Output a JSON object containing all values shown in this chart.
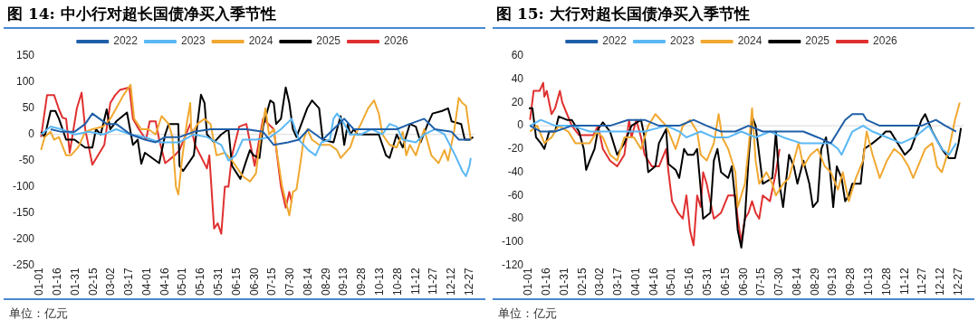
{
  "chart_data": [
    {
      "type": "line",
      "title": "图 14:  中小行对超长国债净买入季节性",
      "annotations": [
        "单位：亿元"
      ],
      "legend": "top",
      "grid": false,
      "marker": "none",
      "line_style": "solid",
      "xlim": [
        "--01-01",
        "--12-31"
      ],
      "xticks": [
        {
          "value": "--01-01",
          "label": "01-01"
        },
        {
          "value": "--01-16",
          "label": "01-16"
        },
        {
          "value": "--01-31",
          "label": "01-31"
        },
        {
          "value": "--02-15",
          "label": "02-15"
        },
        {
          "value": "--03-02",
          "label": "03-02"
        },
        {
          "value": "--03-17",
          "label": "03-17"
        },
        {
          "value": "--04-01",
          "label": "04-01"
        },
        {
          "value": "--04-16",
          "label": "04-16"
        },
        {
          "value": "--05-01",
          "label": "05-01"
        },
        {
          "value": "--05-16",
          "label": "05-16"
        },
        {
          "value": "--05-31",
          "label": "05-31"
        },
        {
          "value": "--06-15",
          "label": "06-15"
        },
        {
          "value": "--06-30",
          "label": "06-30"
        },
        {
          "value": "--07-15",
          "label": "07-15"
        },
        {
          "value": "--07-30",
          "label": "07-30"
        },
        {
          "value": "--08-14",
          "label": "08-14"
        },
        {
          "value": "--08-29",
          "label": "08-29"
        },
        {
          "value": "--09-13",
          "label": "09-13"
        },
        {
          "value": "--09-28",
          "label": "09-28"
        },
        {
          "value": "--10-13",
          "label": "10-13"
        },
        {
          "value": "--10-28",
          "label": "10-28"
        },
        {
          "value": "--11-12",
          "label": "11-12"
        },
        {
          "value": "--11-27",
          "label": "11-27"
        },
        {
          "value": "--12-12",
          "label": "12-12"
        },
        {
          "value": "--12-27",
          "label": "12-27"
        }
      ],
      "ylim": [
        -250,
        150
      ],
      "yticks": [
        -250,
        -200,
        -150,
        -100,
        -50,
        0,
        50,
        100,
        150
      ],
      "ref_lines": [
        {
          "axis": "y",
          "value": 0,
          "color": "#d9d9d9"
        }
      ],
      "series": [
        {
          "name": "2022",
          "color": "#1f5fa8",
          "x": [
            "--01-10",
            "--01-19",
            "--01-30",
            "--02-08",
            "--02-14",
            "--02-20",
            "--02-26",
            "--03-06",
            "--03-18",
            "--03-30",
            "--04-08",
            "--04-16",
            "--04-28",
            "--05-10",
            "--05-24",
            "--06-08",
            "--06-23",
            "--07-07",
            "--07-16",
            "--07-28",
            "--08-06",
            "--08-14",
            "--08-26",
            "--09-04",
            "--09-13",
            "--09-21",
            "--10-03",
            "--10-15",
            "--10-27",
            "--11-07",
            "--11-19",
            "--11-28",
            "--12-12",
            "--12-18",
            "--12-28"
          ],
          "values": [
            10,
            5,
            5,
            20,
            40,
            30,
            20,
            20,
            0,
            -10,
            -15,
            -5,
            -5,
            5,
            10,
            10,
            10,
            5,
            -20,
            -15,
            -10,
            10,
            -10,
            10,
            30,
            10,
            10,
            10,
            10,
            20,
            30,
            10,
            5,
            -10,
            -10
          ]
        },
        {
          "name": "2023",
          "color": "#5bb8f5",
          "x": [
            "--01-02",
            "--01-10",
            "--01-19",
            "--01-30",
            "--02-11",
            "--02-23",
            "--03-06",
            "--03-18",
            "--03-30",
            "--04-11",
            "--04-28",
            "--05-10",
            "--05-21",
            "--06-02",
            "--06-08",
            "--06-14",
            "--06-20",
            "--07-01",
            "--07-13",
            "--07-22",
            "--07-31",
            "--08-06",
            "--08-14",
            "--08-20",
            "--08-25",
            "--09-01",
            "--09-04",
            "--09-07",
            "--09-13",
            "--09-18",
            "--09-27",
            "--10-06",
            "--10-15",
            "--10-21",
            "--10-27",
            "--11-01",
            "--11-12",
            "--11-19",
            "--11-28",
            "--12-06",
            "--12-15",
            "--12-21",
            "--12-24",
            "--12-27",
            "--12-28"
          ],
          "values": [
            0,
            15,
            10,
            0,
            5,
            0,
            10,
            0,
            -5,
            -15,
            -15,
            0,
            -5,
            -20,
            -50,
            -40,
            -10,
            -10,
            -5,
            10,
            30,
            -10,
            -30,
            -40,
            -15,
            -10,
            30,
            40,
            20,
            0,
            0,
            10,
            0,
            20,
            15,
            -10,
            -15,
            0,
            10,
            0,
            -40,
            -70,
            -80,
            -60,
            -45
          ]
        },
        {
          "name": "2024",
          "color": "#f0a830",
          "x": [
            "--01-02",
            "--01-05",
            "--01-10",
            "--01-13",
            "--01-17",
            "--01-23",
            "--01-27",
            "--02-02",
            "--02-08",
            "--02-14",
            "--02-23",
            "--03-01",
            "--03-06",
            "--03-12",
            "--03-18",
            "--03-21",
            "--03-27",
            "--04-02",
            "--04-08",
            "--04-13",
            "--04-19",
            "--04-22",
            "--04-25",
            "--04-27",
            "--04-30",
            "--05-04",
            "--05-07",
            "--05-08",
            "--05-13",
            "--05-19",
            "--05-24",
            "--05-29",
            "--06-05",
            "--06-11",
            "--06-14",
            "--06-20",
            "--06-26",
            "--07-01",
            "--07-04",
            "--07-09",
            "--07-12",
            "--07-16",
            "--07-19",
            "--07-23",
            "--07-29",
            "--08-01",
            "--08-04",
            "--08-07",
            "--08-10",
            "--08-13",
            "--08-17",
            "--08-23",
            "--09-01",
            "--09-07",
            "--09-10",
            "--09-18",
            "--09-21",
            "--09-27",
            "--10-03",
            "--10-08",
            "--10-12",
            "--10-15",
            "--10-21",
            "--10-27",
            "--11-01",
            "--11-04",
            "--11-07",
            "--11-12",
            "--11-19",
            "--11-25",
            "--12-01",
            "--12-06",
            "--12-09",
            "--12-14",
            "--12-18",
            "--12-21",
            "--12-24",
            "--12-28"
          ],
          "values": [
            -30,
            -5,
            5,
            -10,
            -5,
            -40,
            -40,
            -25,
            5,
            10,
            15,
            30,
            50,
            75,
            95,
            30,
            10,
            10,
            0,
            35,
            20,
            -5,
            -100,
            -115,
            -50,
            20,
            60,
            0,
            20,
            30,
            20,
            -40,
            -35,
            -50,
            -60,
            -80,
            -90,
            -75,
            -20,
            50,
            0,
            10,
            -40,
            -100,
            -155,
            -110,
            -105,
            -60,
            -10,
            10,
            -10,
            -20,
            -20,
            -30,
            -45,
            -25,
            -5,
            20,
            50,
            65,
            40,
            0,
            -20,
            -25,
            5,
            -40,
            -20,
            -40,
            10,
            -40,
            -55,
            -30,
            -50,
            5,
            70,
            60,
            55,
            -10
          ]
        },
        {
          "name": "2025",
          "color": "#000000",
          "x": [
            "--01-02",
            "--01-05",
            "--01-10",
            "--01-14",
            "--01-17",
            "--01-23",
            "--01-30",
            "--02-08",
            "--02-14",
            "--02-17",
            "--02-21",
            "--02-26",
            "--03-01",
            "--03-06",
            "--03-15",
            "--03-20",
            "--03-24",
            "--03-27",
            "--03-30",
            "--04-11",
            "--04-16",
            "--04-19",
            "--04-27",
            "--04-28",
            "--05-01",
            "--05-10",
            "--05-13",
            "--05-16",
            "--05-19",
            "--05-21",
            "--05-27",
            "--06-02",
            "--06-08",
            "--06-11",
            "--06-18",
            "--06-23",
            "--06-26",
            "--06-29",
            "--07-04",
            "--07-07",
            "--07-13",
            "--07-16",
            "--07-18",
            "--07-22",
            "--07-26",
            "--07-29",
            "--08-01",
            "--08-04",
            "--08-13",
            "--08-17",
            "--08-23",
            "--08-26",
            "--09-04",
            "--09-10",
            "--09-13",
            "--09-16",
            "--09-18",
            "--09-21",
            "--09-24",
            "--10-12",
            "--10-18",
            "--10-21",
            "--10-27",
            "--11-01",
            "--11-07",
            "--11-12",
            "--11-16",
            "--11-22",
            "--11-26",
            "--12-04",
            "--12-09",
            "--12-12",
            "--12-20",
            "--12-23",
            "--12-27",
            "--12-30"
          ],
          "values": [
            5,
            -5,
            45,
            45,
            30,
            -10,
            -10,
            -25,
            -25,
            10,
            0,
            48,
            10,
            25,
            42,
            -20,
            -10,
            -56,
            -35,
            -55,
            0,
            20,
            20,
            -60,
            -70,
            -40,
            20,
            76,
            60,
            0,
            -15,
            0,
            10,
            -60,
            -85,
            -50,
            -30,
            -40,
            -45,
            15,
            65,
            60,
            20,
            30,
            90,
            60,
            10,
            -5,
            50,
            65,
            50,
            -10,
            -15,
            35,
            -20,
            20,
            0,
            10,
            0,
            0,
            -40,
            -45,
            0,
            -25,
            20,
            15,
            -15,
            20,
            40,
            45,
            50,
            25,
            20,
            -10,
            -10,
            -5
          ]
        },
        {
          "name": "2026",
          "color": "#e03030",
          "x": [
            "--01-02",
            "--01-07",
            "--01-13",
            "--01-17",
            "--01-20",
            "--01-23",
            "--01-26",
            "--02-01",
            "--02-05",
            "--02-08",
            "--02-14",
            "--02-24",
            "--03-01",
            "--03-05",
            "--03-09",
            "--03-17",
            "--03-20",
            "--03-25",
            "--03-31",
            "--04-03",
            "--04-08",
            "--04-11",
            "--04-16",
            "--04-24",
            "--04-28",
            "--05-07",
            "--05-11",
            "--05-21",
            "--05-23",
            "--05-27",
            "--05-30",
            "--06-02",
            "--06-05",
            "--06-08",
            "--06-11",
            "--06-17",
            "--06-23",
            "--06-30",
            "--07-03",
            "--07-07",
            "--07-16",
            "--07-22",
            "--07-26",
            "--07-29",
            "--07-31"
          ],
          "values": [
            -5,
            75,
            75,
            48,
            32,
            30,
            -35,
            50,
            80,
            10,
            -58,
            -20,
            60,
            75,
            85,
            90,
            30,
            10,
            -10,
            25,
            25,
            -10,
            -55,
            -40,
            -30,
            20,
            -20,
            -65,
            -40,
            -180,
            -170,
            -190,
            -100,
            -100,
            -40,
            15,
            20,
            -60,
            -20,
            30,
            10,
            -100,
            -140,
            -110,
            -130
          ]
        }
      ]
    },
    {
      "type": "line",
      "title": "图 15:  大行对超长国债净买入季节性",
      "annotations": [
        "单位：亿元"
      ],
      "legend": "top",
      "grid": false,
      "marker": "none",
      "line_style": "solid",
      "xlim": [
        "--01-01",
        "--12-31"
      ],
      "xticks": [
        {
          "value": "--01-01",
          "label": "01-01"
        },
        {
          "value": "--01-16",
          "label": "01-16"
        },
        {
          "value": "--01-31",
          "label": "01-31"
        },
        {
          "value": "--02-15",
          "label": "02-15"
        },
        {
          "value": "--03-02",
          "label": "03-02"
        },
        {
          "value": "--03-17",
          "label": "03-17"
        },
        {
          "value": "--04-01",
          "label": "04-01"
        },
        {
          "value": "--04-16",
          "label": "04-16"
        },
        {
          "value": "--05-01",
          "label": "05-01"
        },
        {
          "value": "--05-16",
          "label": "05-16"
        },
        {
          "value": "--05-31",
          "label": "05-31"
        },
        {
          "value": "--06-15",
          "label": "06-15"
        },
        {
          "value": "--06-30",
          "label": "06-30"
        },
        {
          "value": "--07-15",
          "label": "07-15"
        },
        {
          "value": "--07-30",
          "label": "07-30"
        },
        {
          "value": "--08-14",
          "label": "08-14"
        },
        {
          "value": "--08-29",
          "label": "08-29"
        },
        {
          "value": "--09-13",
          "label": "09-13"
        },
        {
          "value": "--09-28",
          "label": "09-28"
        },
        {
          "value": "--10-13",
          "label": "10-13"
        },
        {
          "value": "--10-28",
          "label": "10-28"
        },
        {
          "value": "--11-12",
          "label": "11-12"
        },
        {
          "value": "--11-27",
          "label": "11-27"
        },
        {
          "value": "--12-12",
          "label": "12-12"
        },
        {
          "value": "--12-27",
          "label": "12-27"
        }
      ],
      "ylim": [
        -120,
        60
      ],
      "yticks": [
        -120,
        -100,
        -80,
        -60,
        -40,
        -20,
        0,
        20,
        40,
        60
      ],
      "ref_lines": [
        {
          "axis": "y",
          "value": 0,
          "color": "#d9d9d9"
        }
      ],
      "series": [
        {
          "name": "2022",
          "color": "#1f5fa8",
          "x": [
            "--01-02",
            "--01-11",
            "--01-23",
            "--02-06",
            "--02-21",
            "--03-10",
            "--03-25",
            "--04-08",
            "--04-20",
            "--05-07",
            "--05-19",
            "--05-30",
            "--06-11",
            "--06-23",
            "--07-04",
            "--07-16",
            "--07-27",
            "--08-08",
            "--08-19",
            "--08-31",
            "--09-11",
            "--09-17",
            "--09-23",
            "--09-29",
            "--10-08",
            "--10-11",
            "--10-22",
            "--11-03",
            "--11-15",
            "--11-26",
            "--12-08",
            "--12-16",
            "--12-25"
          ],
          "values": [
            0,
            -5,
            -5,
            0,
            0,
            0,
            5,
            5,
            0,
            0,
            5,
            0,
            -5,
            -5,
            0,
            -5,
            -5,
            -5,
            -5,
            -10,
            -15,
            -5,
            5,
            10,
            10,
            5,
            0,
            0,
            0,
            0,
            5,
            0,
            -5
          ]
        },
        {
          "name": "2023",
          "color": "#5bb8f5",
          "x": [
            "--01-02",
            "--01-11",
            "--01-23",
            "--02-06",
            "--02-21",
            "--03-10",
            "--03-25",
            "--04-08",
            "--04-26",
            "--05-07",
            "--05-13",
            "--05-25",
            "--06-05",
            "--06-17",
            "--06-28",
            "--07-10",
            "--07-22",
            "--08-02",
            "--08-17",
            "--08-31",
            "--09-11",
            "--09-17",
            "--09-20",
            "--09-29",
            "--10-08",
            "--10-16",
            "--10-28",
            "--11-09",
            "--11-20",
            "--12-02",
            "--12-13",
            "--12-19",
            "--12-25"
          ],
          "values": [
            0,
            5,
            0,
            0,
            -5,
            -5,
            -5,
            -5,
            0,
            -5,
            -10,
            -5,
            -10,
            -10,
            -5,
            -10,
            -5,
            -10,
            -15,
            -15,
            -15,
            -20,
            -25,
            -5,
            0,
            -5,
            -10,
            -15,
            -10,
            0,
            -20,
            -25,
            -15
          ]
        },
        {
          "name": "2024",
          "color": "#f0a830",
          "x": [
            "--01-02",
            "--01-08",
            "--01-14",
            "--01-20",
            "--01-26",
            "--02-03",
            "--02-09",
            "--02-21",
            "--02-27",
            "--03-04",
            "--03-10",
            "--03-16",
            "--03-22",
            "--03-30",
            "--04-05",
            "--04-11",
            "--04-17",
            "--04-26",
            "--05-04",
            "--05-10",
            "--05-16",
            "--05-22",
            "--05-25",
            "--05-30",
            "--06-05",
            "--06-09",
            "--06-12",
            "--06-17",
            "--06-23",
            "--06-25",
            "--07-01",
            "--07-04",
            "--07-07",
            "--07-10",
            "--07-13",
            "--07-19",
            "--07-24",
            "--07-27",
            "--08-02",
            "--08-07",
            "--08-11",
            "--08-15",
            "--08-19",
            "--08-25",
            "--08-31",
            "--09-06",
            "--09-11",
            "--09-17",
            "--09-21",
            "--09-26",
            "--10-02",
            "--10-08",
            "--10-11",
            "--10-16",
            "--10-22",
            "--10-28",
            "--11-03",
            "--11-09",
            "--11-15",
            "--11-19",
            "--11-23",
            "--11-29",
            "--12-05",
            "--12-09",
            "--12-13",
            "--12-16",
            "--12-19",
            "--12-24",
            "--12-28"
          ],
          "values": [
            -5,
            0,
            -15,
            -10,
            0,
            -5,
            -15,
            -15,
            -5,
            -10,
            -25,
            -30,
            -10,
            -10,
            -20,
            0,
            10,
            0,
            -20,
            0,
            5,
            -5,
            -25,
            -30,
            -15,
            10,
            -10,
            -20,
            -40,
            -70,
            -50,
            -20,
            15,
            -30,
            -50,
            -40,
            -50,
            -60,
            -50,
            -45,
            -30,
            -15,
            -35,
            -25,
            -20,
            -35,
            -40,
            -55,
            -40,
            -65,
            -45,
            -30,
            -5,
            -25,
            -45,
            -30,
            -20,
            -25,
            -35,
            -45,
            -35,
            -20,
            -15,
            -35,
            -40,
            -30,
            -20,
            5,
            20
          ]
        },
        {
          "name": "2025",
          "color": "#000000",
          "x": [
            "--01-01",
            "--01-04",
            "--01-07",
            "--01-11",
            "--01-14",
            "--01-18",
            "--01-23",
            "--01-26",
            "--02-02",
            "--02-06",
            "--02-12",
            "--02-16",
            "--02-18",
            "--02-21",
            "--02-25",
            "--02-28",
            "--03-04",
            "--03-10",
            "--03-16",
            "--03-22",
            "--03-28",
            "--04-05",
            "--04-08",
            "--04-11",
            "--04-17",
            "--04-20",
            "--04-26",
            "--04-28",
            "--05-04",
            "--05-07",
            "--05-11",
            "--05-14",
            "--05-19",
            "--05-22",
            "--05-25",
            "--05-27",
            "--06-02",
            "--06-05",
            "--06-08",
            "--06-11",
            "--06-17",
            "--06-20",
            "--06-23",
            "--06-25",
            "--06-28",
            "--07-01",
            "--07-04",
            "--07-07",
            "--07-10",
            "--07-13",
            "--07-16",
            "--07-24",
            "--07-27",
            "--07-30",
            "--08-02",
            "--08-07",
            "--08-11",
            "--08-14",
            "--08-19",
            "--08-24",
            "--08-27",
            "--08-31",
            "--09-03",
            "--09-07",
            "--09-10",
            "--09-13",
            "--09-16",
            "--09-20",
            "--09-23",
            "--09-26",
            "--09-29",
            "--10-06",
            "--10-09",
            "--10-16",
            "--10-22",
            "--10-27",
            "--10-31",
            "--11-06",
            "--11-12",
            "--11-17",
            "--11-26",
            "--11-29",
            "--12-05",
            "--12-13",
            "--12-19",
            "--12-24",
            "--12-27",
            "--12-29"
          ],
          "values": [
            15,
            15,
            -10,
            -15,
            -20,
            -5,
            -5,
            8,
            5,
            5,
            -5,
            -20,
            -38,
            -30,
            -20,
            -3,
            3,
            -5,
            -25,
            -15,
            0,
            5,
            -10,
            -40,
            -35,
            -15,
            -3,
            -33,
            -38,
            -45,
            -20,
            -25,
            -25,
            -20,
            -55,
            -80,
            -75,
            -30,
            -20,
            -40,
            -45,
            -35,
            -65,
            -90,
            -105,
            -80,
            -30,
            8,
            0,
            -25,
            -50,
            -45,
            -5,
            -50,
            -70,
            -25,
            -35,
            -50,
            -30,
            -50,
            -70,
            -65,
            -20,
            -10,
            -35,
            -70,
            -35,
            -45,
            -65,
            -60,
            -50,
            -50,
            -20,
            -15,
            -10,
            -5,
            -5,
            -15,
            -25,
            -20,
            5,
            10,
            -5,
            -20,
            -28,
            -28,
            -15,
            -2
          ]
        },
        {
          "name": "2026",
          "color": "#e03030",
          "x": [
            "--01-02",
            "--01-05",
            "--01-10",
            "--01-13",
            "--01-14",
            "--01-16",
            "--01-20",
            "--01-23",
            "--01-27",
            "--01-29",
            "--02-02",
            "--02-06",
            "--02-12",
            "--02-24",
            "--02-28",
            "--03-04",
            "--03-10",
            "--03-16",
            "--03-22",
            "--03-26",
            "--03-28",
            "--04-01",
            "--04-05",
            "--04-08",
            "--04-14",
            "--04-20",
            "--04-26",
            "--04-28",
            "--05-01",
            "--05-06",
            "--05-10",
            "--05-13",
            "--05-16",
            "--05-19",
            "--05-22",
            "--05-25",
            "--05-27",
            "--05-30",
            "--06-02",
            "--06-05",
            "--06-11",
            "--06-17",
            "--06-23",
            "--06-25",
            "--06-28",
            "--07-01",
            "--07-04",
            "--07-07",
            "--07-10",
            "--07-13",
            "--07-16",
            "--07-22",
            "--07-27",
            "--07-30"
          ],
          "values": [
            5,
            30,
            30,
            37,
            25,
            30,
            10,
            15,
            30,
            20,
            10,
            0,
            -8,
            -8,
            0,
            -20,
            -30,
            -35,
            -25,
            5,
            -10,
            5,
            -10,
            -25,
            -35,
            -35,
            -20,
            -40,
            -65,
            -75,
            -80,
            -60,
            -90,
            -103,
            -60,
            -70,
            -40,
            -50,
            -65,
            -80,
            -75,
            -60,
            -60,
            -80,
            -100,
            -80,
            -75,
            -65,
            -75,
            -80,
            -60,
            -65,
            -40,
            -20
          ]
        }
      ]
    }
  ]
}
